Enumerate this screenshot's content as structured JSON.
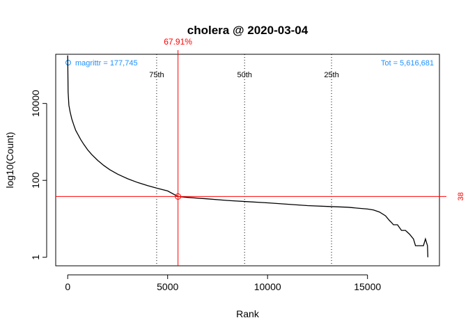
{
  "chart_data": {
    "type": "line",
    "title": "cholera @ 2020-03-04",
    "xlabel": "Rank",
    "ylabel": "log10(Count)",
    "x_scale": "linear",
    "y_scale": "log10",
    "xlim": [
      -600,
      18600
    ],
    "ylim": [
      0.6,
      190000
    ],
    "x_ticks": [
      0,
      5000,
      10000,
      15000
    ],
    "x_tick_labels": [
      "0",
      "5000",
      "10000",
      "15000"
    ],
    "y_ticks": [
      1,
      100,
      10000
    ],
    "y_tick_labels": [
      "1",
      "100",
      "10000"
    ],
    "grid": false,
    "legend": "none",
    "series": [
      {
        "x": [
          1,
          20,
          60,
          120,
          200,
          300,
          400,
          500,
          650,
          800,
          1000,
          1200,
          1500,
          1800,
          2100,
          2500,
          3000,
          3500,
          4000,
          4500,
          5000,
          5519,
          6000,
          7000,
          8000,
          9000,
          10000,
          11000,
          12000,
          13000,
          14000,
          14500,
          15000,
          15300,
          15600,
          15900,
          16100,
          16200,
          16300,
          16500,
          16700,
          16900,
          17100,
          17300,
          17400,
          17500,
          17600,
          17700,
          17800,
          17900,
          18000,
          18020
        ],
        "y": [
          177745,
          20000,
          9000,
          6000,
          4000,
          2800,
          2000,
          1600,
          1150,
          870,
          620,
          470,
          330,
          245,
          190,
          145,
          110,
          88,
          73,
          62,
          53,
          38,
          36,
          33,
          30,
          28,
          26,
          24,
          22,
          21,
          20,
          19,
          18,
          17,
          15,
          12,
          9,
          8,
          7,
          7,
          5,
          5,
          4,
          3,
          2,
          2,
          2,
          2,
          2,
          3,
          2,
          1
        ]
      }
    ],
    "marker": {
      "x": 5519,
      "y": 38,
      "x_label": "67.91%",
      "y_label": "38"
    },
    "percentiles": [
      {
        "label": "75th",
        "x": 4450
      },
      {
        "label": "50th",
        "x": 8850
      },
      {
        "label": "25th",
        "x": 13200
      }
    ],
    "annotations": {
      "left": "magrittr = 177,745",
      "right": "Tot =  5,616,681"
    },
    "colors": {
      "line": "#000000",
      "marker": "#ff0000",
      "annotation": "#1e90ff",
      "axis": "#000000"
    }
  }
}
